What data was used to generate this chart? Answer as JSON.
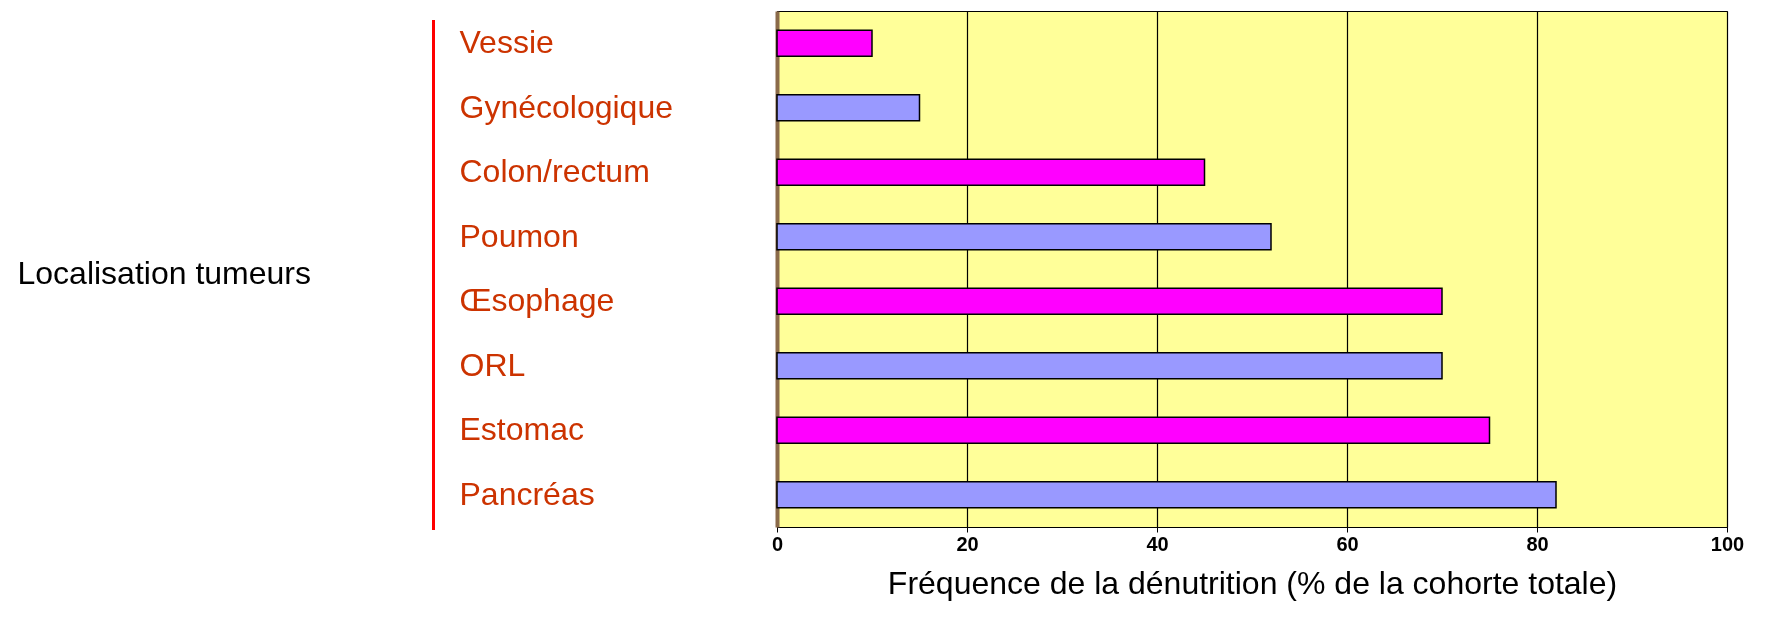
{
  "chart_data": {
    "type": "bar",
    "orientation": "horizontal",
    "xlabel": "Fréquence de la dénutrition (% de la cohorte totale)",
    "ylabel": "Localisation tumeurs",
    "categories": [
      "Vessie",
      "Gynécologique",
      "Colon/rectum",
      "Poumon",
      "Œsophage",
      "ORL",
      "Estomac",
      "Pancréas"
    ],
    "values": [
      10,
      15,
      45,
      52,
      70,
      70,
      75,
      82
    ],
    "colors": [
      "#ff00ff",
      "#9999ff",
      "#ff00ff",
      "#9999ff",
      "#ff00ff",
      "#9999ff",
      "#ff00ff",
      "#9999ff"
    ],
    "xlim": [
      0,
      100
    ],
    "xticks": [
      0,
      20,
      40,
      60,
      80,
      100
    ],
    "grid": "x"
  }
}
